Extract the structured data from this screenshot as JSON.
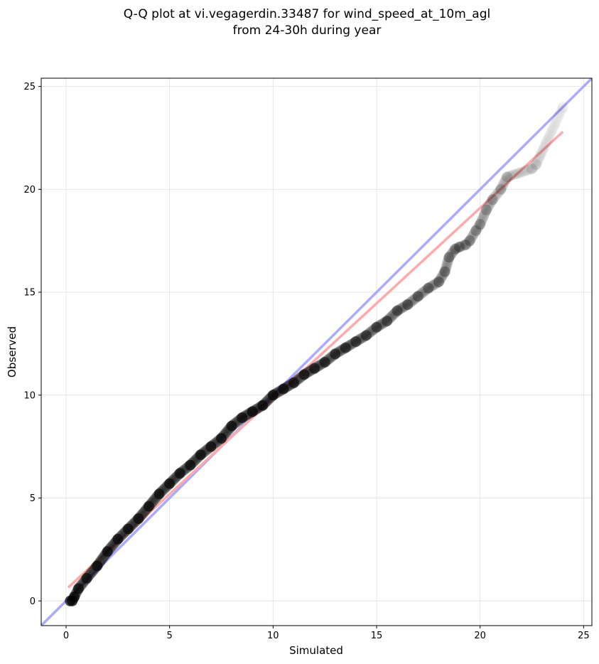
{
  "chart_data": {
    "type": "scatter",
    "title_lines": [
      "Q-Q plot at vi.vegagerdin.33487 for wind_speed_at_10m_agl",
      "from 24-30h during year"
    ],
    "xlabel": "Simulated",
    "ylabel": "Observed",
    "xlim": [
      -1.2,
      25.4
    ],
    "ylim": [
      -1.2,
      25.4
    ],
    "xticks": [
      0,
      5,
      10,
      15,
      20,
      25
    ],
    "yticks": [
      0,
      5,
      10,
      15,
      20,
      25
    ],
    "xtick_labels": [
      "0",
      "5",
      "10",
      "15",
      "20",
      "25"
    ],
    "ytick_labels": [
      "0",
      "5",
      "10",
      "15",
      "20",
      "25"
    ],
    "grid": true,
    "reference_line": {
      "name": "1:1",
      "color": "#aaaaff",
      "x": [
        -1.2,
        25.4
      ],
      "y": [
        -1.2,
        25.4
      ]
    },
    "fit_line": {
      "color": "#ffaaaa",
      "x": [
        0.1,
        24.0
      ],
      "y": [
        0.65,
        22.8
      ]
    },
    "quantiles": {
      "x": [
        0.2,
        0.3,
        0.4,
        0.6,
        1.0,
        1.5,
        2.0,
        2.5,
        3.0,
        3.5,
        4.0,
        4.5,
        5.0,
        5.5,
        6.0,
        6.5,
        7.0,
        7.5,
        8.0,
        8.5,
        9.0,
        9.5,
        10.0,
        10.5,
        11.0,
        11.5,
        12.0,
        12.5,
        13.0,
        13.5,
        14.0,
        14.5,
        15.0,
        15.5,
        16.0,
        16.5,
        17.0,
        17.5,
        18.0,
        18.3,
        18.5,
        18.8,
        19.0,
        19.3,
        19.5,
        19.8,
        20.0,
        20.3,
        20.6,
        21.0,
        21.3,
        22.5,
        22.7,
        24.0
      ],
      "y": [
        0.0,
        0.0,
        0.2,
        0.6,
        1.1,
        1.7,
        2.4,
        3.0,
        3.5,
        4.0,
        4.6,
        5.2,
        5.7,
        6.2,
        6.6,
        7.1,
        7.5,
        7.9,
        8.5,
        8.9,
        9.2,
        9.5,
        10.0,
        10.3,
        10.6,
        11.0,
        11.3,
        11.6,
        12.0,
        12.3,
        12.6,
        12.9,
        13.3,
        13.6,
        14.1,
        14.4,
        14.8,
        15.2,
        15.5,
        16.0,
        16.7,
        17.1,
        17.2,
        17.3,
        17.5,
        18.0,
        18.3,
        19.0,
        19.5,
        20.0,
        20.6,
        21.0,
        21.2,
        24.0
      ]
    },
    "marker_color": "#000000",
    "marker_shading": "opacity decreases toward the upper tail"
  }
}
